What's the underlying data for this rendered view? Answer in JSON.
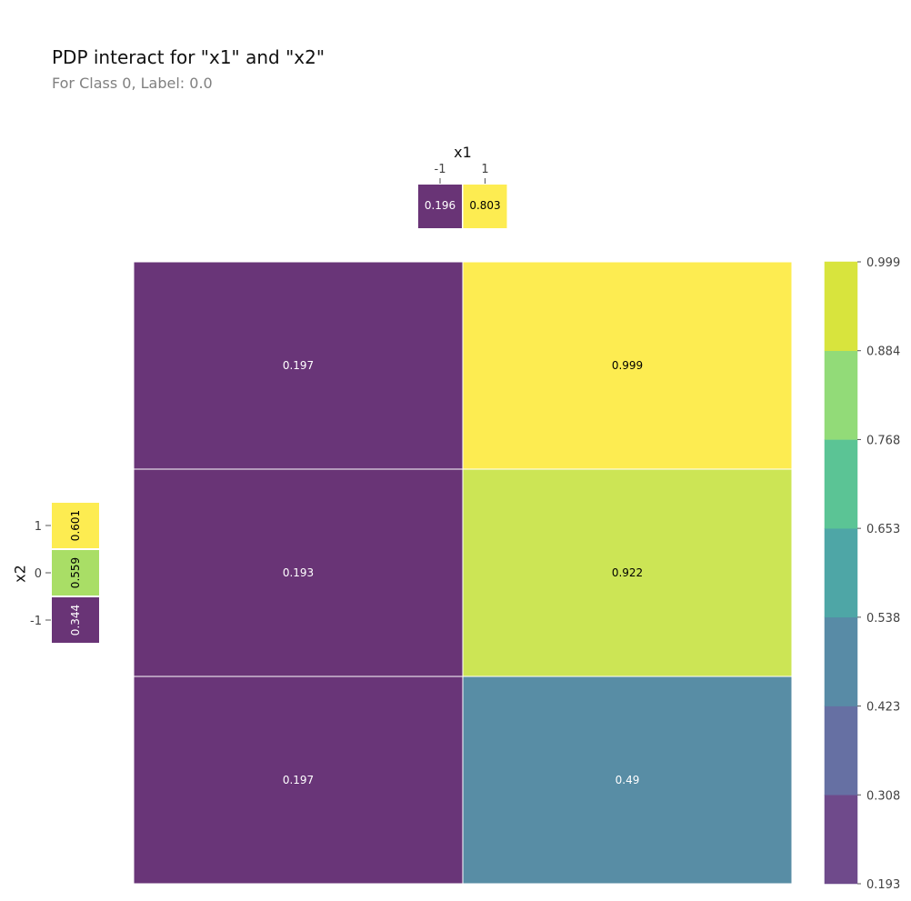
{
  "title": "PDP interact for \"x1\" and \"x2\"",
  "subtitle": "For Class 0, Label: 0.0",
  "chart_data": {
    "type": "heatmap",
    "x_feature": "x1",
    "y_feature": "x2",
    "x_values": [
      "-1",
      "1"
    ],
    "y_values": [
      "1",
      "0",
      "-1"
    ],
    "matrix": [
      [
        0.197,
        0.999
      ],
      [
        0.193,
        0.922
      ],
      [
        0.197,
        0.49
      ]
    ],
    "matrix_labels": [
      [
        "0.197",
        "0.999"
      ],
      [
        "0.193",
        "0.922"
      ],
      [
        "0.197",
        "0.49"
      ]
    ],
    "x_marginal": [
      {
        "tick": "-1",
        "value": 0.196,
        "label": "0.196"
      },
      {
        "tick": "1",
        "value": 0.803,
        "label": "0.803"
      }
    ],
    "y_marginal": [
      {
        "tick": "1",
        "value": 0.601,
        "label": "0.601"
      },
      {
        "tick": "0",
        "value": 0.559,
        "label": "0.559"
      },
      {
        "tick": "-1",
        "value": 0.344,
        "label": "0.344"
      }
    ],
    "colorbar": {
      "min": 0.193,
      "max": 0.999,
      "ticks": [
        "0.193",
        "0.308",
        "0.423",
        "0.538",
        "0.653",
        "0.768",
        "0.884",
        "0.999"
      ],
      "colors": [
        "#6f4a8b",
        "#6670a3",
        "#588ba6",
        "#4ea6a6",
        "#5bc495",
        "#92db78",
        "#d8e43d"
      ]
    },
    "colormap": "viridis",
    "grid": false
  }
}
